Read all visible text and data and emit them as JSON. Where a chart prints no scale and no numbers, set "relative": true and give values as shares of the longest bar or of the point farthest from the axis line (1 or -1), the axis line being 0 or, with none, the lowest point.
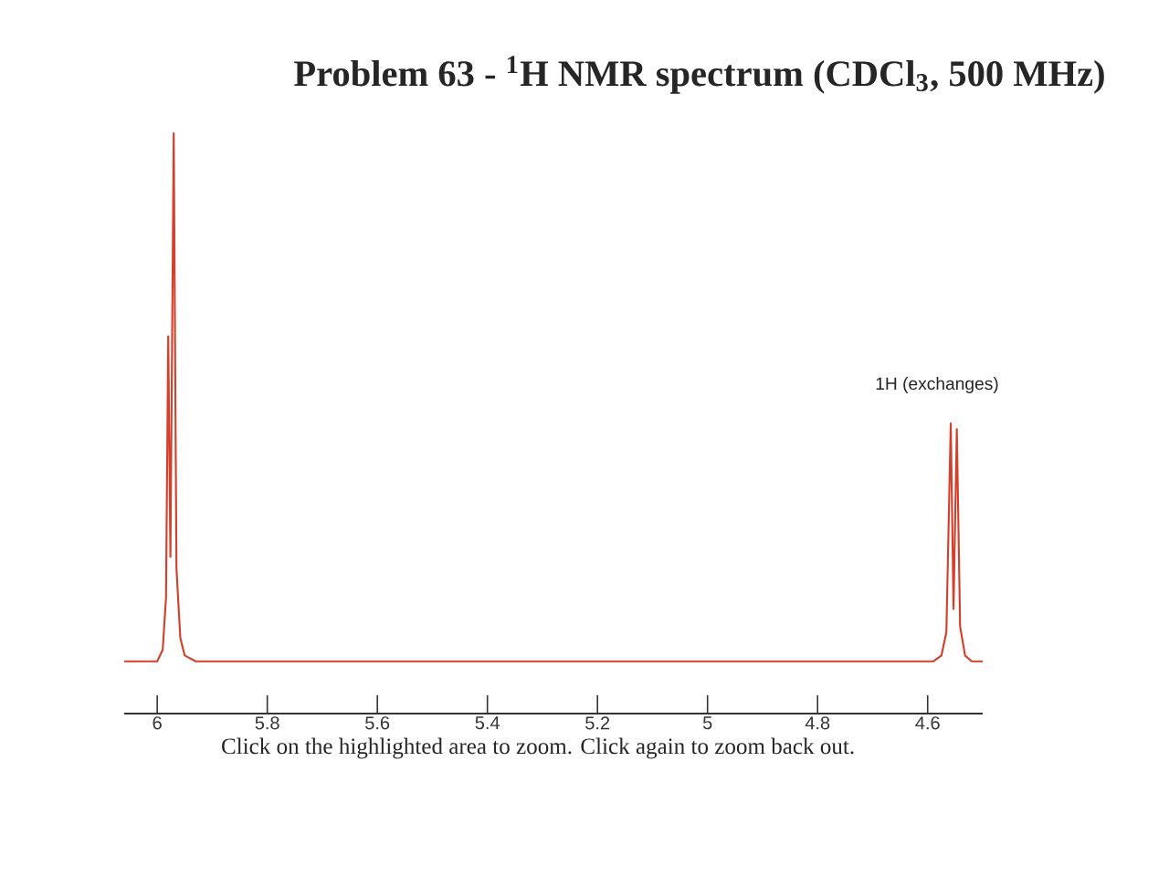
{
  "chart_data": {
    "type": "line",
    "title": "Problem 63 - $^{1}$H NMR spectrum (CDCl$_{3}$, 500 MHz)",
    "x": [
      6.06,
      6.0,
      5.99,
      5.984,
      5.98,
      5.976,
      5.97,
      5.965,
      5.958,
      5.95,
      5.93,
      4.59,
      4.575,
      4.566,
      4.558,
      4.553,
      4.547,
      4.541,
      4.532,
      4.52,
      4.5
    ],
    "values": [
      0.09,
      0.09,
      0.11,
      0.2,
      0.65,
      0.27,
      1.0,
      0.25,
      0.13,
      0.1,
      0.09,
      0.09,
      0.1,
      0.14,
      0.5,
      0.18,
      0.49,
      0.15,
      0.1,
      0.09,
      0.09
    ],
    "color": "#d3402c",
    "line_style": "solid",
    "relative": true,
    "xlim": [
      6.06,
      4.5
    ],
    "xticks": [
      6,
      5.8,
      5.6,
      5.4,
      5.2,
      5,
      4.8,
      4.6
    ],
    "tick_labels": "x",
    "annotations": [
      "1H (exchanges)",
      "Click on the highlighted area to zoom. Click again to zoom back out."
    ]
  }
}
